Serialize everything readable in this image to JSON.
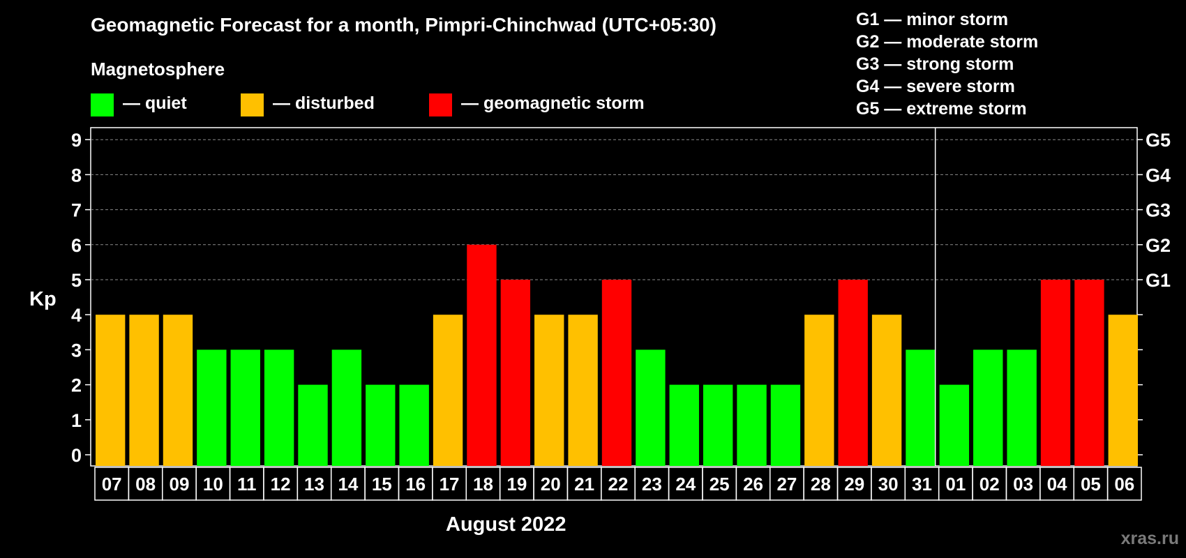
{
  "title": "Geomagnetic Forecast for a month, Pimpri-Chinchwad (UTC+05:30)",
  "subtitle": "Magnetosphere",
  "legend": [
    {
      "label": "— quiet",
      "color": "#00ff00"
    },
    {
      "label": "— disturbed",
      "color": "#ffc000"
    },
    {
      "label": "— geomagnetic storm",
      "color": "#ff0000"
    }
  ],
  "storm_scale": [
    {
      "level": "G1",
      "text": "G1 — minor storm"
    },
    {
      "level": "G2",
      "text": "G2 — moderate storm"
    },
    {
      "level": "G3",
      "text": "G3 — strong storm"
    },
    {
      "level": "G4",
      "text": "G4 — severe storm"
    },
    {
      "level": "G5",
      "text": "G5 — extreme storm"
    }
  ],
  "watermark": "xras.ru",
  "colors": {
    "quiet": "#00ff00",
    "disturbed": "#ffc000",
    "storm": "#ff0000",
    "background": "#000000",
    "axis": "#ffffff"
  },
  "chart_data": {
    "type": "bar",
    "title": "Geomagnetic Forecast for a month, Pimpri-Chinchwad (UTC+05:30)",
    "xlabel": "August 2022",
    "ylabel": "Kp",
    "ylim": [
      0,
      9
    ],
    "yticks": [
      "0",
      "1",
      "2",
      "3",
      "4",
      "5",
      "6",
      "7",
      "8",
      "9"
    ],
    "right_axis_labels": [
      {
        "kp": 5,
        "label": "G1"
      },
      {
        "kp": 6,
        "label": "G2"
      },
      {
        "kp": 7,
        "label": "G3"
      },
      {
        "kp": 8,
        "label": "G4"
      },
      {
        "kp": 9,
        "label": "G5"
      }
    ],
    "grid": "dashed horizontal at Kp 5–9",
    "month_divider_after": "31",
    "categories": [
      "07",
      "08",
      "09",
      "10",
      "11",
      "12",
      "13",
      "14",
      "15",
      "16",
      "17",
      "18",
      "19",
      "20",
      "21",
      "22",
      "23",
      "24",
      "25",
      "26",
      "27",
      "28",
      "29",
      "30",
      "31",
      "01",
      "02",
      "03",
      "04",
      "05",
      "06"
    ],
    "values": [
      4,
      4,
      4,
      3,
      3,
      3,
      2,
      3,
      2,
      2,
      4,
      6,
      5,
      4,
      4,
      5,
      3,
      2,
      2,
      2,
      2,
      4,
      5,
      4,
      3,
      2,
      3,
      3,
      5,
      5,
      4
    ],
    "status": [
      "disturbed",
      "disturbed",
      "disturbed",
      "quiet",
      "quiet",
      "quiet",
      "quiet",
      "quiet",
      "quiet",
      "quiet",
      "disturbed",
      "storm",
      "storm",
      "disturbed",
      "disturbed",
      "storm",
      "quiet",
      "quiet",
      "quiet",
      "quiet",
      "quiet",
      "disturbed",
      "storm",
      "disturbed",
      "quiet",
      "quiet",
      "quiet",
      "quiet",
      "storm",
      "storm",
      "disturbed"
    ]
  }
}
